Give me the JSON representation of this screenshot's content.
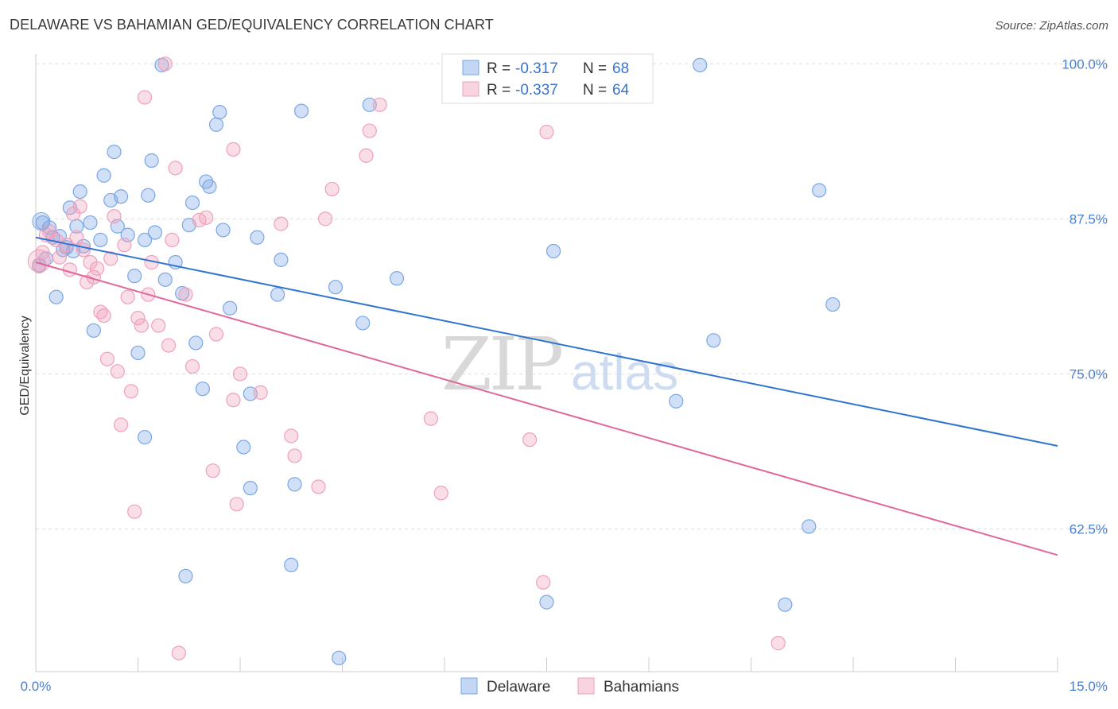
{
  "chart_data": {
    "type": "scatter",
    "title": "DELAWARE VS BAHAMIAN GED/EQUIVALENCY CORRELATION CHART",
    "source": "Source: ZipAtlas.com",
    "ylabel": "GED/Equivalency",
    "xlim": [
      0,
      15
    ],
    "ylim": [
      51,
      101.3
    ],
    "x_tick_labels": [
      "0.0%",
      "15.0%"
    ],
    "y_ticks": [
      {
        "value": 100,
        "label": "100.0%"
      },
      {
        "value": 87.5,
        "label": "87.5%"
      },
      {
        "value": 75,
        "label": "75.0%"
      },
      {
        "value": 62.5,
        "label": "62.5%"
      }
    ],
    "grid": true,
    "legend_position": "bottom-center",
    "watermark": "ZIPatlas",
    "series": [
      {
        "name": "Delaware",
        "color": "#7aa7e6",
        "line_color": "#2f74d0",
        "r": "-0.317",
        "n": "68",
        "trend": {
          "x0": 0,
          "y0": 86.0,
          "x1": 15,
          "y1": 69.2
        },
        "points": [
          [
            0.1,
            87.2
          ],
          [
            0.2,
            86.8
          ],
          [
            0.25,
            86.0
          ],
          [
            0.3,
            81.2
          ],
          [
            0.4,
            85.0
          ],
          [
            0.45,
            85.2
          ],
          [
            0.5,
            88.4
          ],
          [
            0.6,
            86.9
          ],
          [
            0.65,
            89.7
          ],
          [
            0.7,
            85.3
          ],
          [
            0.8,
            87.2
          ],
          [
            0.85,
            78.5
          ],
          [
            0.95,
            85.8
          ],
          [
            1.0,
            91.0
          ],
          [
            1.1,
            89.0
          ],
          [
            1.15,
            92.9
          ],
          [
            1.2,
            86.9
          ],
          [
            1.25,
            89.3
          ],
          [
            1.35,
            86.2
          ],
          [
            1.45,
            82.9
          ],
          [
            1.5,
            76.7
          ],
          [
            1.6,
            85.8
          ],
          [
            1.6,
            69.9
          ],
          [
            1.65,
            89.4
          ],
          [
            1.7,
            92.2
          ],
          [
            1.75,
            86.4
          ],
          [
            1.85,
            99.9
          ],
          [
            1.9,
            82.6
          ],
          [
            2.05,
            84.0
          ],
          [
            2.15,
            81.5
          ],
          [
            2.2,
            58.7
          ],
          [
            2.25,
            87.0
          ],
          [
            2.3,
            88.8
          ],
          [
            2.35,
            77.5
          ],
          [
            2.45,
            73.8
          ],
          [
            2.5,
            90.5
          ],
          [
            2.55,
            90.1
          ],
          [
            2.65,
            95.1
          ],
          [
            2.7,
            96.1
          ],
          [
            2.75,
            86.6
          ],
          [
            2.85,
            80.3
          ],
          [
            3.05,
            69.1
          ],
          [
            3.15,
            73.4
          ],
          [
            3.15,
            65.8
          ],
          [
            3.25,
            86.0
          ],
          [
            3.55,
            81.4
          ],
          [
            3.6,
            84.2
          ],
          [
            3.75,
            59.6
          ],
          [
            3.8,
            66.1
          ],
          [
            3.9,
            96.2
          ],
          [
            4.4,
            82.0
          ],
          [
            4.45,
            52.1
          ],
          [
            4.8,
            79.1
          ],
          [
            4.9,
            96.7
          ],
          [
            5.3,
            82.7
          ],
          [
            7.5,
            56.6
          ],
          [
            7.6,
            84.9
          ],
          [
            9.4,
            72.8
          ],
          [
            9.75,
            99.9
          ],
          [
            9.95,
            77.7
          ],
          [
            11.0,
            56.4
          ],
          [
            11.35,
            62.7
          ],
          [
            11.5,
            89.8
          ],
          [
            11.7,
            80.6
          ],
          [
            0.05,
            83.7
          ],
          [
            0.15,
            84.3
          ],
          [
            0.35,
            86.1
          ],
          [
            0.55,
            84.9
          ]
        ]
      },
      {
        "name": "Bahamians",
        "color": "#f0a0bb",
        "line_color": "#e0679a",
        "r": "-0.337",
        "n": "64",
        "trend": {
          "x0": 0,
          "y0": 84.0,
          "x1": 15,
          "y1": 60.4
        },
        "points": [
          [
            0.05,
            83.8
          ],
          [
            0.15,
            86.2
          ],
          [
            0.2,
            86.5
          ],
          [
            0.35,
            84.4
          ],
          [
            0.45,
            85.4
          ],
          [
            0.5,
            83.4
          ],
          [
            0.55,
            87.9
          ],
          [
            0.6,
            86.0
          ],
          [
            0.65,
            88.5
          ],
          [
            0.7,
            85.0
          ],
          [
            0.8,
            84.0
          ],
          [
            0.85,
            82.8
          ],
          [
            0.9,
            83.5
          ],
          [
            0.95,
            80.0
          ],
          [
            1.0,
            79.7
          ],
          [
            1.05,
            76.2
          ],
          [
            1.15,
            87.7
          ],
          [
            1.2,
            75.2
          ],
          [
            1.25,
            70.9
          ],
          [
            1.3,
            85.4
          ],
          [
            1.35,
            81.2
          ],
          [
            1.4,
            73.6
          ],
          [
            1.45,
            63.9
          ],
          [
            1.5,
            79.5
          ],
          [
            1.55,
            78.9
          ],
          [
            1.6,
            97.3
          ],
          [
            1.65,
            81.4
          ],
          [
            1.7,
            84.0
          ],
          [
            1.8,
            78.9
          ],
          [
            1.9,
            100.0
          ],
          [
            1.95,
            77.3
          ],
          [
            2.0,
            85.8
          ],
          [
            2.05,
            91.6
          ],
          [
            2.1,
            52.5
          ],
          [
            2.2,
            81.4
          ],
          [
            2.3,
            75.6
          ],
          [
            2.4,
            87.4
          ],
          [
            2.5,
            87.6
          ],
          [
            2.6,
            67.2
          ],
          [
            2.65,
            78.2
          ],
          [
            2.9,
            72.9
          ],
          [
            2.9,
            93.1
          ],
          [
            2.95,
            64.5
          ],
          [
            3.0,
            75.0
          ],
          [
            3.3,
            73.5
          ],
          [
            3.6,
            87.1
          ],
          [
            3.75,
            70.0
          ],
          [
            3.8,
            68.4
          ],
          [
            4.15,
            65.9
          ],
          [
            4.25,
            87.5
          ],
          [
            4.35,
            89.9
          ],
          [
            4.85,
            92.6
          ],
          [
            4.9,
            94.6
          ],
          [
            5.05,
            96.7
          ],
          [
            5.8,
            71.4
          ],
          [
            5.95,
            65.4
          ],
          [
            7.25,
            69.7
          ],
          [
            7.45,
            58.2
          ],
          [
            7.5,
            94.5
          ],
          [
            10.9,
            53.3
          ],
          [
            0.1,
            84.8
          ],
          [
            0.3,
            85.8
          ],
          [
            0.75,
            82.4
          ],
          [
            1.1,
            84.3
          ]
        ]
      }
    ]
  }
}
